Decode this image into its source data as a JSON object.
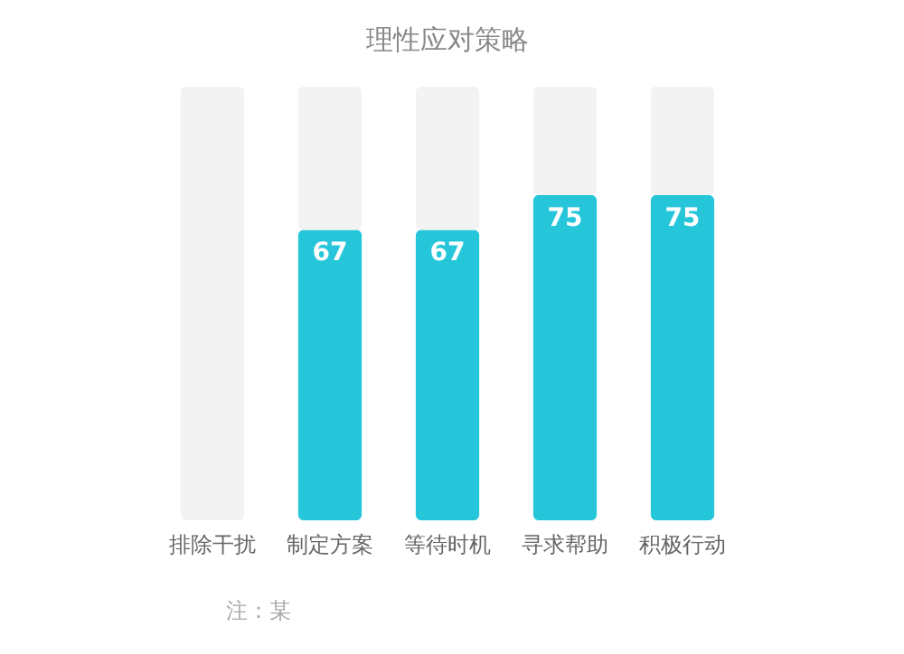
{
  "chart_data": {
    "type": "bar",
    "title": "理性应对策略",
    "categories": [
      "排除干扰",
      "制定方案",
      "等待时机",
      "寻求帮助",
      "积极行动"
    ],
    "series": [
      {
        "color": "#26c6da",
        "values": [
          null,
          67,
          67,
          75,
          75
        ],
        "value_labels": [
          null,
          "67",
          "67",
          "75",
          "75"
        ]
      },
      {
        "color": "#f3f3f3",
        "values": [
          100,
          33,
          33,
          25,
          25
        ],
        "value_labels": [
          null,
          null,
          null,
          null,
          null
        ]
      }
    ],
    "stacked": true,
    "ylim": [
      0,
      100
    ],
    "tick_labels": "x",
    "grid": false,
    "legend": false,
    "annotations": [
      "注：某"
    ]
  }
}
